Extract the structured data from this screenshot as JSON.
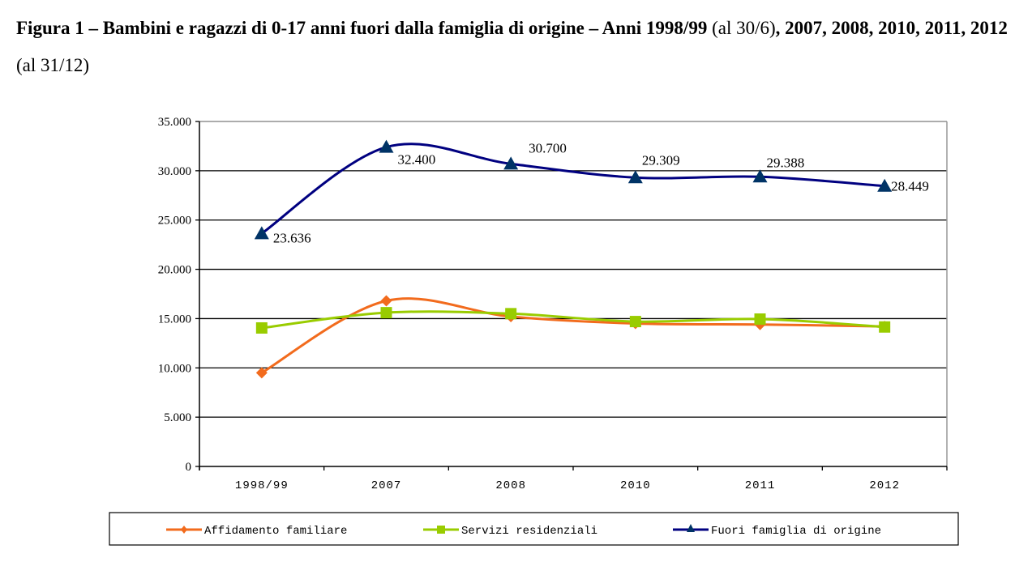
{
  "title": {
    "parts": [
      {
        "text": "Figura 1 – Bambini e ragazzi di 0-17 anni fuori dalla famiglia di origine – Anni 1998/99 ",
        "bold": true
      },
      {
        "text": "(al 30/6)",
        "bold": false
      },
      {
        "text": ", 2007, 2008, 2010, 2011, 2012 ",
        "bold": true
      },
      {
        "text": "(al 31/12)",
        "bold": false
      }
    ]
  },
  "chart_data": {
    "type": "line",
    "title": "Figura 1 – Bambini e ragazzi di 0-17 anni fuori dalla famiglia di origine – Anni 1998/99 (al 30/6), 2007, 2008, 2010, 2011, 2012 (al 31/12)",
    "xlabel": "",
    "ylabel": "",
    "categories": [
      "1998/99",
      "2007",
      "2008",
      "2010",
      "2011",
      "2012"
    ],
    "ylim": [
      0,
      35000
    ],
    "yticks": [
      0,
      5000,
      10000,
      15000,
      20000,
      25000,
      30000,
      35000
    ],
    "ytick_labels": [
      "0",
      "5.000",
      "10.000",
      "15.000",
      "20.000",
      "25.000",
      "30.000",
      "35.000"
    ],
    "grid": true,
    "smooth": true,
    "legend_position": "bottom",
    "series": [
      {
        "name": "Affidamento familiare",
        "color": "#F26B1D",
        "marker": "diamond",
        "values": [
          9500,
          16800,
          15200,
          14500,
          14400,
          14200
        ],
        "data_labels": null
      },
      {
        "name": "Servizi residenziali",
        "color": "#99CC00",
        "marker": "square",
        "values": [
          14050,
          15600,
          15500,
          14700,
          14950,
          14150
        ],
        "data_labels": null
      },
      {
        "name": "Fuori famiglia di origine",
        "color": "#000080",
        "marker_color": "#003366",
        "marker": "triangle",
        "values": [
          23636,
          32400,
          30700,
          29309,
          29388,
          28449
        ],
        "data_labels": [
          "23.636",
          "32.400",
          "30.700",
          "29.309",
          "29.388",
          "28.449"
        ]
      }
    ]
  }
}
